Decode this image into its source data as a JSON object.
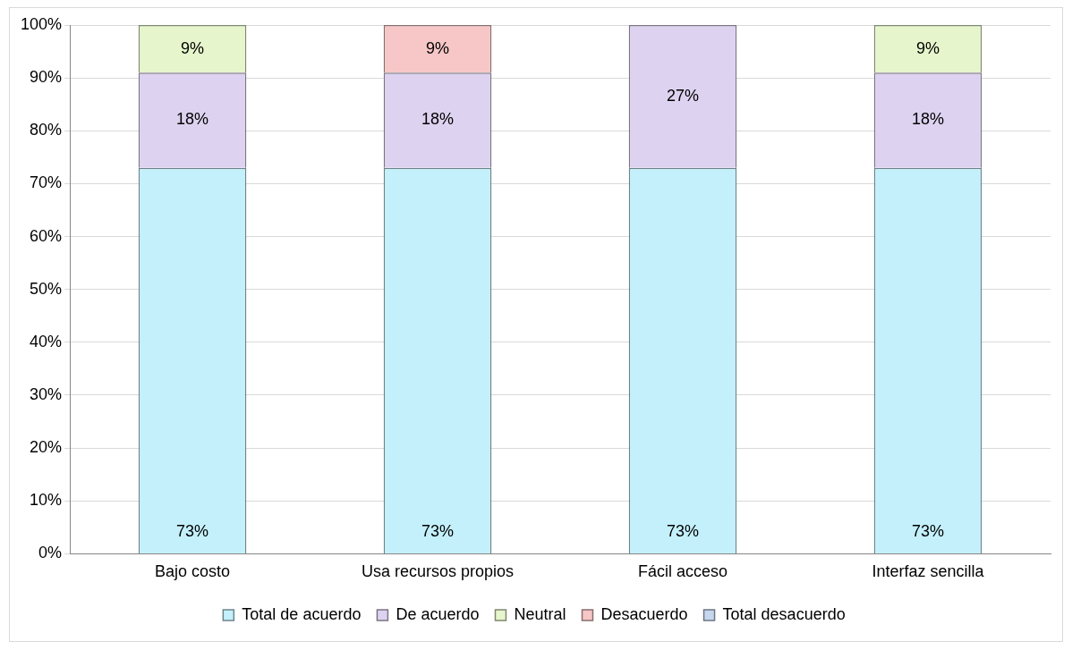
{
  "chart_data": {
    "type": "bar",
    "stacked": true,
    "categories": [
      "Bajo costo",
      "Usa recursos propios",
      "Fácil acceso",
      "Interfaz sencilla"
    ],
    "series": [
      {
        "name": "Total de acuerdo",
        "color": "#c4f0fb",
        "values": [
          73,
          73,
          73,
          73
        ],
        "value_labels": [
          "73%",
          "73%",
          "73%",
          "73%"
        ]
      },
      {
        "name": "De acuerdo",
        "color": "#ddd3f0",
        "values": [
          18,
          18,
          27,
          18
        ],
        "value_labels": [
          "18%",
          "18%",
          "27%",
          "18%"
        ]
      },
      {
        "name": "Neutral",
        "color": "#e6f5cc",
        "values": [
          9,
          0,
          0,
          9
        ],
        "value_labels": [
          "9%",
          null,
          null,
          "9%"
        ]
      },
      {
        "name": "Desacuerdo",
        "color": "#f7c6c6",
        "values": [
          0,
          9,
          0,
          0
        ],
        "value_labels": [
          null,
          "9%",
          null,
          null
        ]
      },
      {
        "name": "Total desacuerdo",
        "color": "#c6d6ee",
        "values": [
          0,
          0,
          0,
          0
        ],
        "value_labels": [
          null,
          null,
          null,
          null
        ]
      }
    ],
    "ylim": [
      0,
      100
    ],
    "yticks": [
      {
        "value": 0,
        "label": "0%"
      },
      {
        "value": 10,
        "label": "10%"
      },
      {
        "value": 20,
        "label": "20%"
      },
      {
        "value": 30,
        "label": "30%"
      },
      {
        "value": 40,
        "label": "40%"
      },
      {
        "value": 50,
        "label": "50%"
      },
      {
        "value": 60,
        "label": "60%"
      },
      {
        "value": 70,
        "label": "70%"
      },
      {
        "value": 80,
        "label": "80%"
      },
      {
        "value": 90,
        "label": "90%"
      },
      {
        "value": 100,
        "label": "100%"
      }
    ],
    "grid": "y",
    "legend": "bottom"
  }
}
